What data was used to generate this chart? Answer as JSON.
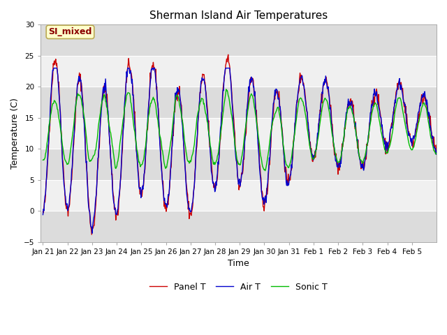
{
  "title": "Sherman Island Air Temperatures",
  "xlabel": "Time",
  "ylabel": "Temperature (C)",
  "ylim": [
    -5,
    30
  ],
  "yticks": [
    -5,
    0,
    5,
    10,
    15,
    20,
    25,
    30
  ],
  "fig_bg": "#ffffff",
  "plot_bg": "#f0f0f0",
  "band_colors": [
    "#dcdcdc",
    "#f0f0f0"
  ],
  "line_colors": {
    "panel": "#cc0000",
    "air": "#0000cc",
    "sonic": "#00bb00"
  },
  "legend_labels": [
    "Panel T",
    "Air T",
    "Sonic T"
  ],
  "annotation_text": "SI_mixed",
  "annotation_color": "#8b0000",
  "annotation_bg": "#ffffcc",
  "annotation_edge": "#bbaa55",
  "x_tick_labels": [
    "Jan 21",
    "Jan 22",
    "Jan 23",
    "Jan 24",
    "Jan 25",
    "Jan 26",
    "Jan 27",
    "Jan 28",
    "Jan 29",
    "Jan 30",
    "Jan 31",
    "Feb 1",
    "Feb 2",
    "Feb 3",
    "Feb 4",
    "Feb 5"
  ],
  "title_fontsize": 11,
  "label_fontsize": 9,
  "tick_fontsize": 7.5,
  "legend_fontsize": 9,
  "linewidth": 1.0
}
